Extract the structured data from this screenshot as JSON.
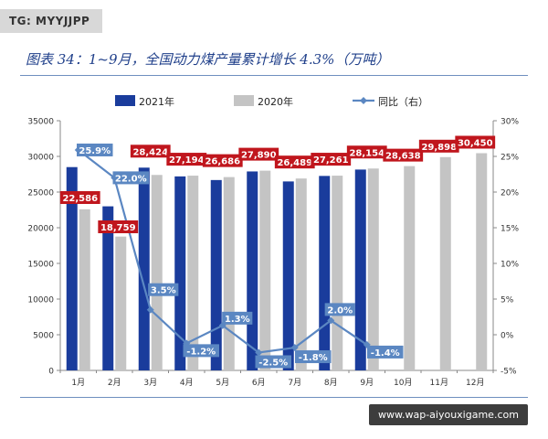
{
  "tag": "TG: MYYJJPP",
  "title": "图表 34：1~9月，全国动力煤产量累计增长 4.3%（万吨）",
  "watermark": "www.wap-aiyouxigame.com",
  "colors": {
    "series_2021": "#1a3c9c",
    "series_2020": "#c4c4c4",
    "line": "#5b87c2",
    "label_red": "#c0161d",
    "label_blue": "#5b87c2"
  },
  "chart_data": {
    "type": "bar+line",
    "categories": [
      "1月",
      "2月",
      "3月",
      "4月",
      "5月",
      "6月",
      "7月",
      "8月",
      "9月",
      "10月",
      "11月",
      "12月"
    ],
    "series": [
      {
        "name": "2021年",
        "type": "bar",
        "axis": "left",
        "values": [
          28500,
          23000,
          28424,
          27194,
          26686,
          27890,
          26489,
          27261,
          28154,
          null,
          null,
          null
        ]
      },
      {
        "name": "2020年",
        "type": "bar",
        "axis": "left",
        "values": [
          22586,
          18759,
          27400,
          27300,
          27100,
          28000,
          26900,
          27300,
          28300,
          28638,
          29898,
          30450
        ]
      },
      {
        "name": "同比（右）",
        "type": "line",
        "axis": "right",
        "values": [
          25.9,
          22.0,
          3.5,
          -1.2,
          1.3,
          -2.5,
          -1.8,
          2.0,
          -1.4,
          null,
          null,
          null
        ]
      }
    ],
    "red_labels": [
      {
        "index": 0,
        "text": "22,586"
      },
      {
        "index": 1,
        "text": "18,759"
      },
      {
        "index": 2,
        "text": "28,424"
      },
      {
        "index": 3,
        "text": "27,194"
      },
      {
        "index": 4,
        "text": "26,686"
      },
      {
        "index": 5,
        "text": "27,890"
      },
      {
        "index": 6,
        "text": "26,489"
      },
      {
        "index": 7,
        "text": "27,261"
      },
      {
        "index": 8,
        "text": "28,154"
      },
      {
        "index": 9,
        "text": "28,638"
      },
      {
        "index": 10,
        "text": "29,898"
      },
      {
        "index": 11,
        "text": "30,450"
      }
    ],
    "line_labels": [
      "25.9%",
      "22.0%",
      "3.5%",
      "-1.2%",
      "1.3%",
      "-2.5%",
      "-1.8%",
      "2.0%",
      "-1.4%"
    ],
    "y_left": {
      "min": 0,
      "max": 35000,
      "ticks": [
        "0",
        "5000",
        "10000",
        "15000",
        "20000",
        "25000",
        "30000",
        "35000"
      ]
    },
    "y_right": {
      "min": -5,
      "max": 30,
      "ticks": [
        "-5%",
        "0%",
        "5%",
        "10%",
        "15%",
        "20%",
        "25%",
        "30%"
      ]
    },
    "legend_position": "top",
    "grid": false
  }
}
